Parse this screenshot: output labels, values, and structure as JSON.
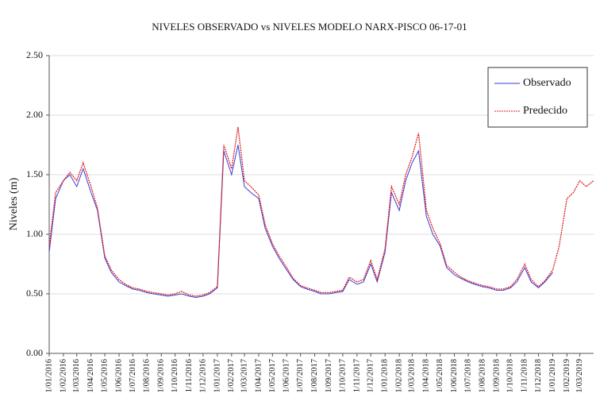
{
  "chart_data": {
    "type": "line",
    "title": "NIVELES OBSERVADO vs NIVELES MODELO NARX-PISCO 06-17-01",
    "y_label": "Niveles (m)",
    "x": [
      "2016-01-01",
      "2016-01-15",
      "2016-02-01",
      "2016-02-15",
      "2016-03-01",
      "2016-03-15",
      "2016-04-01",
      "2016-04-15",
      "2016-05-01",
      "2016-05-15",
      "2016-06-01",
      "2016-06-15",
      "2016-07-01",
      "2016-07-15",
      "2016-08-01",
      "2016-08-15",
      "2016-09-01",
      "2016-09-15",
      "2016-10-01",
      "2016-10-15",
      "2016-11-01",
      "2016-11-15",
      "2016-12-01",
      "2016-12-15",
      "2017-01-01",
      "2017-01-15",
      "2017-02-01",
      "2017-02-15",
      "2017-03-01",
      "2017-03-15",
      "2017-04-01",
      "2017-04-15",
      "2017-05-01",
      "2017-05-15",
      "2017-06-01",
      "2017-06-15",
      "2017-07-01",
      "2017-07-15",
      "2017-08-01",
      "2017-08-15",
      "2017-09-01",
      "2017-09-15",
      "2017-10-01",
      "2017-10-15",
      "2017-11-01",
      "2017-11-15",
      "2017-12-01",
      "2017-12-15",
      "2018-01-01",
      "2018-01-15",
      "2018-02-01",
      "2018-02-15",
      "2018-03-01",
      "2018-03-15",
      "2018-04-01",
      "2018-04-15",
      "2018-05-01",
      "2018-05-15",
      "2018-06-01",
      "2018-06-15",
      "2018-07-01",
      "2018-07-15",
      "2018-08-01",
      "2018-08-15",
      "2018-09-01",
      "2018-09-15",
      "2018-10-01",
      "2018-10-15",
      "2018-11-01",
      "2018-11-15",
      "2018-12-01",
      "2018-12-15",
      "2019-01-01",
      "2019-01-15",
      "2019-02-01",
      "2019-02-15",
      "2019-03-01",
      "2019-03-15",
      "2019-03-31"
    ],
    "series": [
      {
        "name": "Observado",
        "color": "#3a3ad8",
        "values": [
          0.85,
          1.3,
          1.45,
          1.5,
          1.4,
          1.55,
          1.35,
          1.2,
          0.8,
          0.68,
          0.6,
          0.57,
          0.54,
          0.53,
          0.51,
          0.5,
          0.49,
          0.48,
          0.49,
          0.5,
          0.48,
          0.47,
          0.48,
          0.5,
          0.55,
          1.7,
          1.5,
          1.75,
          1.4,
          1.35,
          1.3,
          1.05,
          0.9,
          0.8,
          0.7,
          0.62,
          0.56,
          0.54,
          0.52,
          0.5,
          0.5,
          0.51,
          0.52,
          0.62,
          0.58,
          0.6,
          0.75,
          0.6,
          0.85,
          1.35,
          1.2,
          1.45,
          1.6,
          1.7,
          1.15,
          1.0,
          0.9,
          0.72,
          0.66,
          0.63,
          0.6,
          0.58,
          0.56,
          0.55,
          0.53,
          0.53,
          0.55,
          0.6,
          0.72,
          0.6,
          0.55,
          0.6,
          0.68,
          null,
          null,
          null,
          null,
          null,
          null
        ]
      },
      {
        "name": "Predecido",
        "color": "#e02020",
        "values": [
          0.9,
          1.35,
          1.45,
          1.52,
          1.45,
          1.6,
          1.4,
          1.22,
          0.82,
          0.7,
          0.62,
          0.58,
          0.55,
          0.54,
          0.52,
          0.51,
          0.5,
          0.49,
          0.5,
          0.52,
          0.49,
          0.48,
          0.49,
          0.51,
          0.56,
          1.75,
          1.55,
          1.9,
          1.45,
          1.4,
          1.33,
          1.08,
          0.92,
          0.82,
          0.72,
          0.63,
          0.57,
          0.55,
          0.53,
          0.51,
          0.51,
          0.52,
          0.53,
          0.64,
          0.6,
          0.62,
          0.78,
          0.62,
          0.88,
          1.4,
          1.25,
          1.5,
          1.65,
          1.85,
          1.2,
          1.05,
          0.92,
          0.74,
          0.68,
          0.64,
          0.61,
          0.59,
          0.57,
          0.56,
          0.54,
          0.54,
          0.56,
          0.62,
          0.75,
          0.62,
          0.56,
          0.61,
          0.7,
          0.9,
          1.3,
          1.35,
          1.45,
          1.4,
          1.45
        ]
      }
    ],
    "xlim": [
      "2016-01-01",
      "2019-03-31"
    ],
    "xticks": [
      {
        "value": "2016-01-01",
        "label": "1/01/2016"
      },
      {
        "value": "2016-02-01",
        "label": "1/02/2016"
      },
      {
        "value": "2016-03-01",
        "label": "1/03/2016"
      },
      {
        "value": "2016-04-01",
        "label": "1/04/2016"
      },
      {
        "value": "2016-05-01",
        "label": "1/05/2016"
      },
      {
        "value": "2016-06-01",
        "label": "1/06/2016"
      },
      {
        "value": "2016-07-01",
        "label": "1/07/2016"
      },
      {
        "value": "2016-08-01",
        "label": "1/08/2016"
      },
      {
        "value": "2016-09-01",
        "label": "1/09/2016"
      },
      {
        "value": "2016-10-01",
        "label": "1/10/2016"
      },
      {
        "value": "2016-11-01",
        "label": "1/11/2016"
      },
      {
        "value": "2016-12-01",
        "label": "1/12/2016"
      },
      {
        "value": "2017-01-01",
        "label": "1/01/2017"
      },
      {
        "value": "2017-02-01",
        "label": "1/02/2017"
      },
      {
        "value": "2017-03-01",
        "label": "1/03/2017"
      },
      {
        "value": "2017-04-01",
        "label": "1/04/2017"
      },
      {
        "value": "2017-05-01",
        "label": "1/05/2017"
      },
      {
        "value": "2017-06-01",
        "label": "1/06/2017"
      },
      {
        "value": "2017-07-01",
        "label": "1/07/2017"
      },
      {
        "value": "2017-08-01",
        "label": "1/08/2017"
      },
      {
        "value": "2017-09-01",
        "label": "1/09/2017"
      },
      {
        "value": "2017-10-01",
        "label": "1/10/2017"
      },
      {
        "value": "2017-11-01",
        "label": "1/11/2017"
      },
      {
        "value": "2017-12-01",
        "label": "1/12/2017"
      },
      {
        "value": "2018-01-01",
        "label": "1/01/2018"
      },
      {
        "value": "2018-02-01",
        "label": "1/02/2018"
      },
      {
        "value": "2018-03-01",
        "label": "1/03/2018"
      },
      {
        "value": "2018-04-01",
        "label": "1/04/2018"
      },
      {
        "value": "2018-05-01",
        "label": "1/05/2018"
      },
      {
        "value": "2018-06-01",
        "label": "1/06/2018"
      },
      {
        "value": "2018-07-01",
        "label": "1/07/2018"
      },
      {
        "value": "2018-08-01",
        "label": "1/08/2018"
      },
      {
        "value": "2018-09-01",
        "label": "1/09/2018"
      },
      {
        "value": "2018-10-01",
        "label": "1/10/2018"
      },
      {
        "value": "2018-11-01",
        "label": "1/11/2018"
      },
      {
        "value": "2018-12-01",
        "label": "1/12/2018"
      },
      {
        "value": "2019-01-01",
        "label": "1/01/2019"
      },
      {
        "value": "2019-02-01",
        "label": "1/02/2019"
      },
      {
        "value": "2019-03-01",
        "label": "1/03/2019"
      }
    ],
    "ylim": [
      0,
      2.5
    ],
    "yticks": [
      {
        "value": 0,
        "label": "0.00"
      },
      {
        "value": 0.5,
        "label": "0.50"
      },
      {
        "value": 1,
        "label": "1.00"
      },
      {
        "value": 1.5,
        "label": "1.50"
      },
      {
        "value": 2,
        "label": "2.00"
      },
      {
        "value": 2.5,
        "label": "2.50"
      }
    ],
    "grid": true,
    "legend": "upper right"
  }
}
